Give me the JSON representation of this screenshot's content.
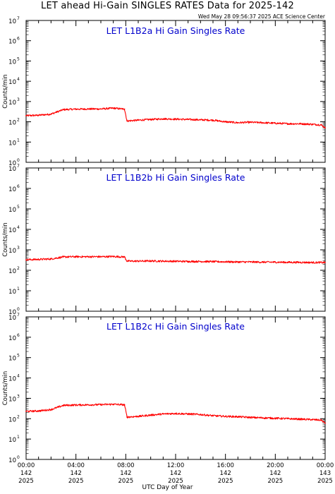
{
  "title": "LET ahead Hi-Gain SINGLES RATES Data for 2025-142",
  "timestamp": "Wed May 28 09:56:37 2025 ACE Science Center",
  "x_axis_title": "UTC Day of Year",
  "colors": {
    "series": "#ff0000",
    "panel_title": "#0000cc",
    "axes": "#000000"
  },
  "chart_data": [
    {
      "type": "line",
      "title": "LET L1B2a Hi Gain Singles Rate",
      "ylabel": "Counts/min",
      "yscale": "log",
      "ylim": [
        1,
        10000000
      ],
      "y_ticks": [
        "10",
        "10",
        "10",
        "10",
        "10",
        "10",
        "10",
        "10"
      ],
      "y_tick_exponents": [
        "0",
        "1",
        "2",
        "3",
        "4",
        "5",
        "6",
        "7"
      ],
      "xlim": [
        0,
        24
      ],
      "x": [
        0,
        1,
        2,
        3,
        4,
        5,
        6,
        7,
        7.9,
        8.1,
        9,
        10,
        11,
        12,
        13,
        14,
        15,
        16,
        17,
        18,
        19,
        20,
        21,
        22,
        23,
        23.7,
        24
      ],
      "series": [
        {
          "values": [
            200,
            210,
            240,
            400,
            420,
            430,
            430,
            470,
            420,
            110,
            120,
            130,
            140,
            135,
            130,
            125,
            120,
            100,
            90,
            95,
            90,
            85,
            80,
            80,
            75,
            70,
            50
          ]
        }
      ]
    },
    {
      "type": "line",
      "title": "LET L1B2b Hi Gain Singles Rate",
      "ylabel": "Counts/min",
      "yscale": "log",
      "ylim": [
        1,
        10000000
      ],
      "y_ticks": [
        "10",
        "10",
        "10",
        "10",
        "10",
        "10",
        "10",
        "10"
      ],
      "y_tick_exponents": [
        "0",
        "1",
        "2",
        "3",
        "4",
        "5",
        "6",
        "7"
      ],
      "xlim": [
        0,
        24
      ],
      "x": [
        0,
        1,
        2,
        3,
        4,
        5,
        6,
        7,
        7.9,
        8.1,
        9,
        10,
        11,
        12,
        13,
        14,
        15,
        16,
        17,
        18,
        19,
        20,
        21,
        22,
        23,
        24
      ],
      "series": [
        {
          "values": [
            330,
            340,
            360,
            450,
            460,
            460,
            460,
            470,
            450,
            280,
            280,
            285,
            280,
            275,
            270,
            270,
            265,
            260,
            255,
            255,
            250,
            250,
            245,
            245,
            240,
            240
          ]
        }
      ]
    },
    {
      "type": "line",
      "title": "LET L1B2c Hi Gain Singles Rate",
      "ylabel": "Counts/min",
      "yscale": "log",
      "ylim": [
        1,
        10000000
      ],
      "y_ticks": [
        "10",
        "10",
        "10",
        "10",
        "10",
        "10",
        "10",
        "10"
      ],
      "y_tick_exponents": [
        "0",
        "1",
        "2",
        "3",
        "4",
        "5",
        "6",
        "7"
      ],
      "xlim": [
        0,
        24
      ],
      "x": [
        0,
        1,
        2,
        3,
        4,
        5,
        6,
        7,
        7.9,
        8.1,
        9,
        10,
        11,
        12,
        13,
        14,
        15,
        16,
        17,
        18,
        19,
        20,
        21,
        22,
        23,
        23.7,
        24
      ],
      "series": [
        {
          "values": [
            230,
            240,
            280,
            450,
            470,
            480,
            490,
            510,
            480,
            120,
            130,
            150,
            170,
            180,
            170,
            160,
            140,
            130,
            125,
            115,
            110,
            105,
            100,
            95,
            90,
            85,
            60
          ]
        }
      ]
    }
  ],
  "x_ticks": [
    {
      "time": "00:00",
      "day": "142",
      "year": "2025"
    },
    {
      "time": "04:00",
      "day": "142",
      "year": "2025"
    },
    {
      "time": "08:00",
      "day": "142",
      "year": "2025"
    },
    {
      "time": "12:00",
      "day": "142",
      "year": "2025"
    },
    {
      "time": "16:00",
      "day": "142",
      "year": "2025"
    },
    {
      "time": "20:00",
      "day": "142",
      "year": "2025"
    },
    {
      "time": "00:00",
      "day": "143",
      "year": "2025"
    }
  ]
}
